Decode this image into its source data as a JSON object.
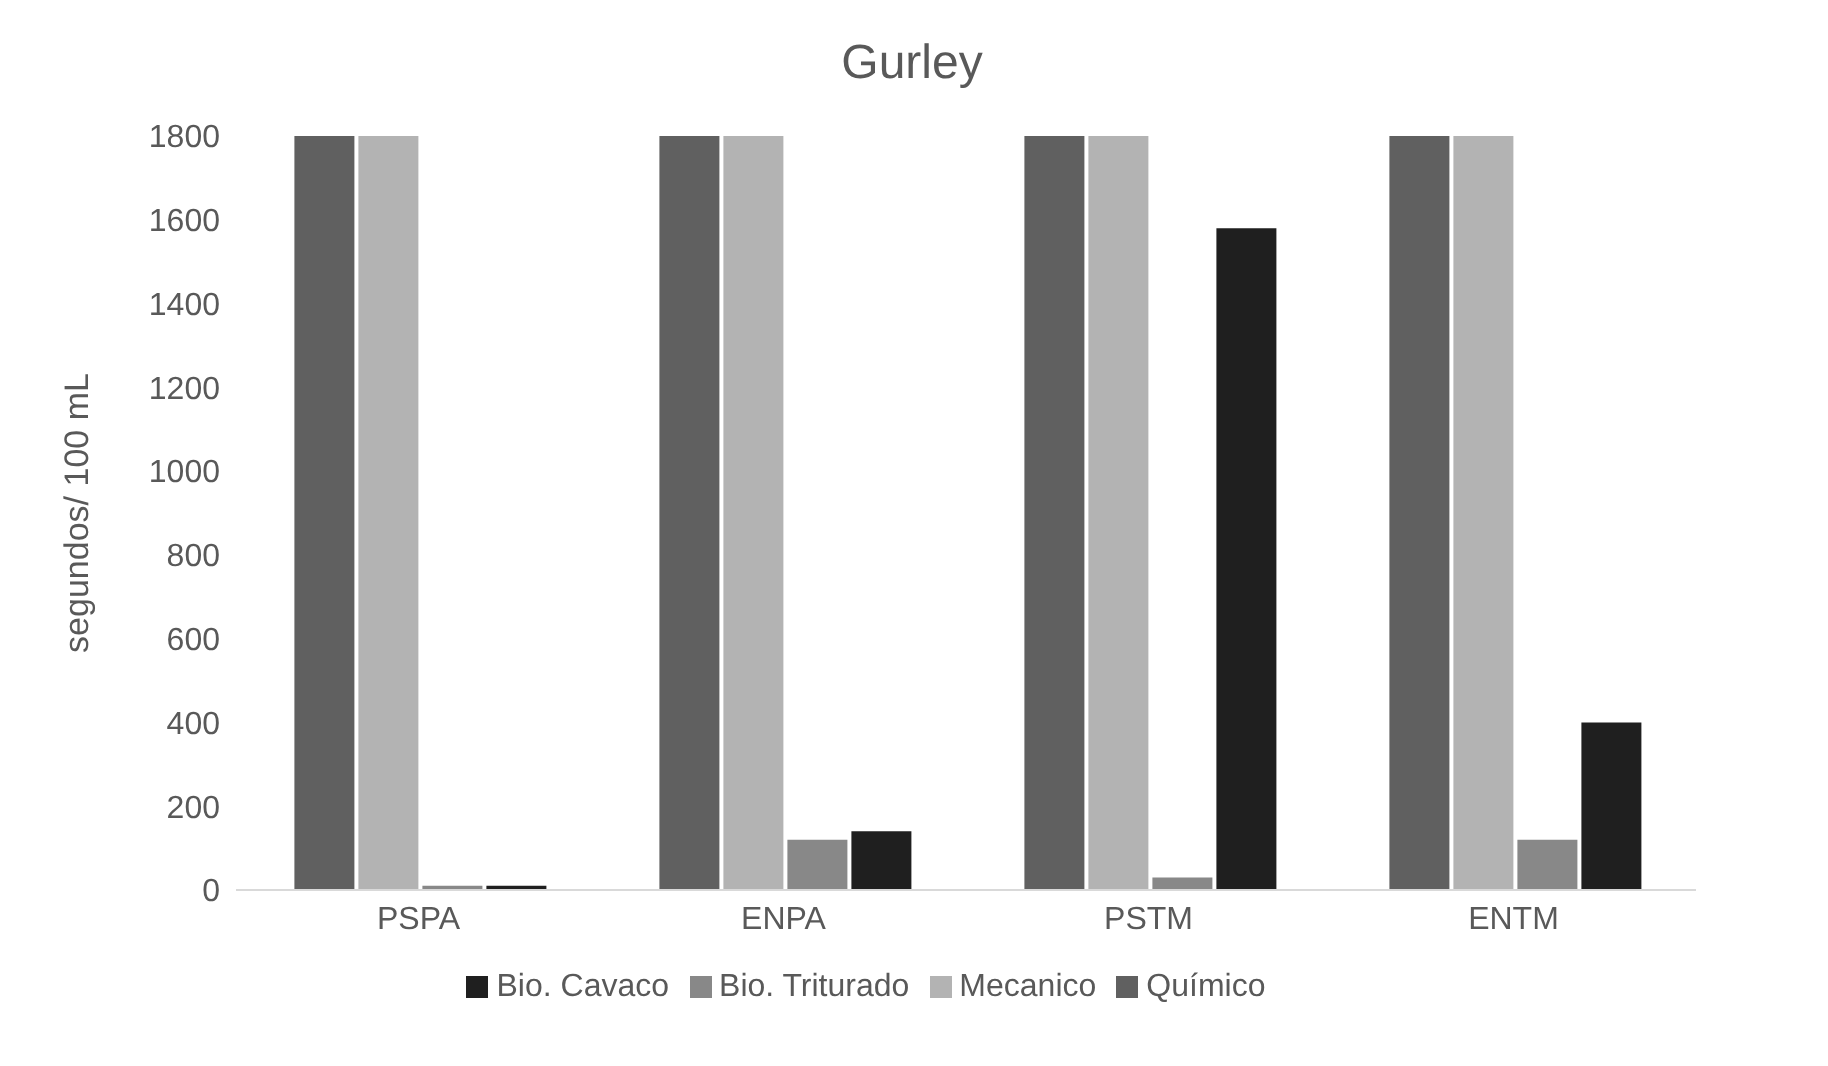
{
  "chart_data": {
    "type": "bar",
    "title": "Gurley",
    "ylabel": "segundos/ 100 mL",
    "categories": [
      "PSPA",
      "ENPA",
      "PSTM",
      "ENTM"
    ],
    "series": [
      {
        "name": "Químico",
        "color": "#606060",
        "values": [
          1800,
          1800,
          1800,
          1800
        ]
      },
      {
        "name": "Mecanico",
        "color": "#b3b3b3",
        "values": [
          1800,
          1800,
          1800,
          1800
        ]
      },
      {
        "name": "Bio. Triturado",
        "color": "#888888",
        "values": [
          10,
          120,
          30,
          120
        ]
      },
      {
        "name": "Bio. Cavaco",
        "color": "#1f1f1f",
        "values": [
          10,
          140,
          1580,
          400
        ]
      }
    ],
    "ylim": [
      0,
      1800
    ],
    "yticks": [
      0,
      200,
      400,
      600,
      800,
      1000,
      1200,
      1400,
      1600,
      1800
    ],
    "grid": false,
    "legend": "bottom"
  }
}
